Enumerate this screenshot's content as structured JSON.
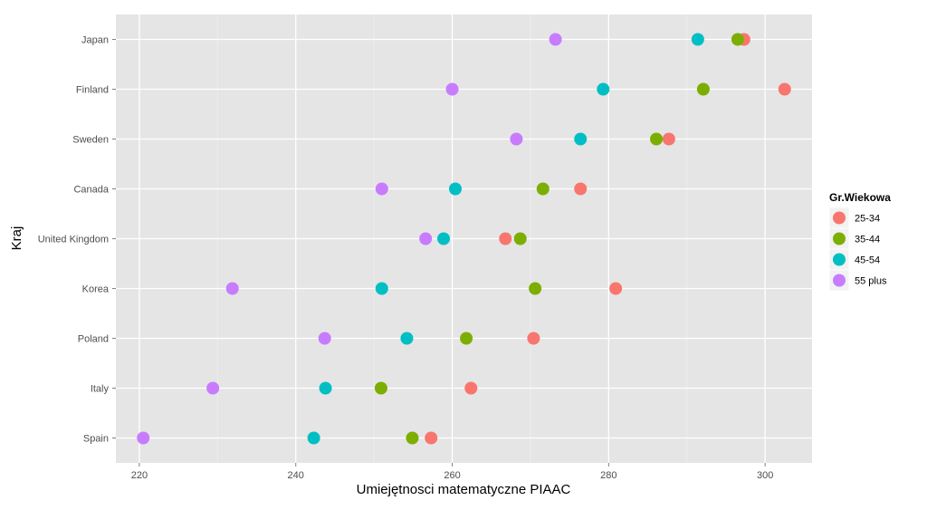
{
  "chart_data": {
    "type": "scatter",
    "title": "",
    "xlabel": "Umiejętnosci matematyczne PIAAC",
    "ylabel": "Kraj",
    "xlim": [
      217,
      306
    ],
    "x_ticks": [
      220,
      240,
      260,
      280,
      300
    ],
    "x_tick_labels": [
      "220",
      "240",
      "260",
      "280",
      "300"
    ],
    "categories": [
      "Japan",
      "Finland",
      "Sweden",
      "Canada",
      "United Kingdom",
      "Korea",
      "Poland",
      "Italy",
      "Spain"
    ],
    "grid": true,
    "legend": {
      "title": "Gr.Wiekowa",
      "position": "right"
    },
    "series": [
      {
        "name": "25-34",
        "color": "#F8766D",
        "values": [
          297.3,
          302.5,
          287.7,
          276.4,
          266.8,
          280.9,
          270.4,
          262.4,
          257.3
        ]
      },
      {
        "name": "35-44",
        "color": "#7CAE00",
        "values": [
          296.5,
          292.1,
          286.1,
          271.6,
          268.7,
          270.6,
          261.8,
          250.9,
          254.9
        ]
      },
      {
        "name": "45-54",
        "color": "#00BFC4",
        "values": [
          291.4,
          279.3,
          276.4,
          260.4,
          258.9,
          251.0,
          254.2,
          243.8,
          242.3
        ]
      },
      {
        "name": "55 plus",
        "color": "#C77CFF",
        "values": [
          273.2,
          260.0,
          268.2,
          251.0,
          256.6,
          231.9,
          243.7,
          229.4,
          220.5
        ]
      }
    ]
  }
}
